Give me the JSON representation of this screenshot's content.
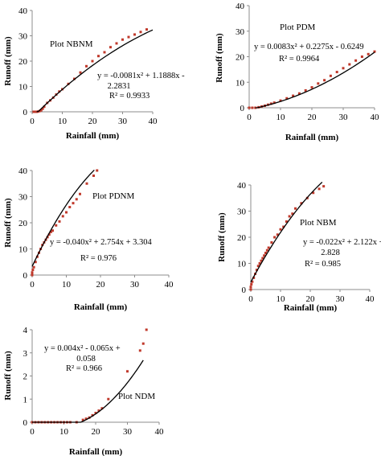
{
  "chart_data": [
    {
      "type": "scatter",
      "title": "Plot NBNM",
      "xlabel": "Rainfall (mm)",
      "ylabel": "Runoff (mm)",
      "xlim": [
        0,
        40
      ],
      "ylim": [
        0,
        40
      ],
      "xticks": [
        "0",
        "10",
        "20",
        "30",
        "40"
      ],
      "yticks": [
        "0",
        "10",
        "20",
        "30",
        "40"
      ],
      "equation_lines": [
        "y = -0.0081x² + 1.1888x -",
        "2.2831"
      ],
      "r2": "R² = 0.9933",
      "fit": {
        "a": -0.0081,
        "b": 1.1888,
        "c": -2.2831,
        "x_start": 1.5,
        "x_end": 40
      },
      "points": [
        [
          0.5,
          0
        ],
        [
          1,
          0
        ],
        [
          1.5,
          0
        ],
        [
          2,
          0.1
        ],
        [
          2.5,
          0.3
        ],
        [
          3,
          0.6
        ],
        [
          3.5,
          1.2
        ],
        [
          4,
          2.0
        ],
        [
          5,
          3.5
        ],
        [
          6,
          4.5
        ],
        [
          7,
          5.6
        ],
        [
          8,
          6.8
        ],
        [
          9,
          8.0
        ],
        [
          10,
          8.9
        ],
        [
          12,
          11
        ],
        [
          14,
          13
        ],
        [
          16,
          15.5
        ],
        [
          18,
          18
        ],
        [
          20,
          20
        ],
        [
          22,
          22
        ],
        [
          24,
          23.5
        ],
        [
          26,
          25.5
        ],
        [
          28,
          27
        ],
        [
          30,
          28.5
        ],
        [
          32,
          29.5
        ],
        [
          34,
          30.5
        ],
        [
          36,
          31.5
        ],
        [
          38,
          32.5
        ]
      ]
    },
    {
      "type": "scatter",
      "title": "Plot PDM",
      "xlabel": "Rainfall (mm)",
      "ylabel": "Runoff (mm)",
      "xlim": [
        0,
        40
      ],
      "ylim": [
        0,
        40
      ],
      "xticks": [
        "0",
        "10",
        "20",
        "30",
        "40"
      ],
      "yticks": [
        "0",
        "10",
        "20",
        "30",
        "40"
      ],
      "equation_lines": [
        "y = 0.0083x² + 0.2275x - 0.6249"
      ],
      "r2": "R² = 0.9964",
      "fit": {
        "a": 0.0083,
        "b": 0.2275,
        "c": -0.6249,
        "x_start": 2,
        "x_end": 40
      },
      "points": [
        [
          0,
          0
        ],
        [
          1,
          0
        ],
        [
          2,
          0
        ],
        [
          3,
          0.2
        ],
        [
          4,
          0.5
        ],
        [
          5,
          0.8
        ],
        [
          6,
          1.2
        ],
        [
          7,
          1.6
        ],
        [
          8,
          2
        ],
        [
          10,
          2.8
        ],
        [
          12,
          3.7
        ],
        [
          14,
          4.7
        ],
        [
          16,
          5.6
        ],
        [
          18,
          6.8
        ],
        [
          20,
          8
        ],
        [
          22,
          9.5
        ],
        [
          24,
          10.8
        ],
        [
          26,
          12.5
        ],
        [
          28,
          14
        ],
        [
          30,
          15.5
        ],
        [
          32,
          17
        ],
        [
          34,
          18.5
        ],
        [
          36,
          20
        ],
        [
          38,
          21
        ],
        [
          40,
          22
        ]
      ]
    },
    {
      "type": "scatter",
      "title": "Plot PDNM",
      "xlabel": "Rainfall (mm)",
      "ylabel": "Runoff (mm)",
      "xlim": [
        0,
        40
      ],
      "ylim": [
        0,
        40
      ],
      "xticks": [
        "0",
        "10",
        "20",
        "30",
        "40"
      ],
      "yticks": [
        "0",
        "10",
        "20",
        "30",
        "40"
      ],
      "equation_lines": [
        "y = -0.040x² + 2.754x + 3.304"
      ],
      "r2": "R² = 0.976",
      "fit": {
        "a": -0.04,
        "b": 2.754,
        "c": 3.304,
        "x_start": 0,
        "x_end": 18.2
      },
      "points": [
        [
          0,
          0
        ],
        [
          0,
          0.5
        ],
        [
          0,
          1
        ],
        [
          0.2,
          2
        ],
        [
          0.5,
          3
        ],
        [
          1,
          5
        ],
        [
          1.5,
          7
        ],
        [
          2,
          8.5
        ],
        [
          2.5,
          10
        ],
        [
          3,
          11.5
        ],
        [
          3.5,
          12.5
        ],
        [
          4,
          13.5
        ],
        [
          4.5,
          14.5
        ],
        [
          5,
          15.5
        ],
        [
          5.5,
          16.5
        ],
        [
          6,
          17
        ],
        [
          7,
          19
        ],
        [
          8,
          20.5
        ],
        [
          9,
          22.5
        ],
        [
          10,
          24
        ],
        [
          11,
          26
        ],
        [
          12,
          27.5
        ],
        [
          13,
          29
        ],
        [
          14,
          31
        ],
        [
          16,
          35
        ],
        [
          18,
          38
        ],
        [
          19,
          40
        ]
      ]
    },
    {
      "type": "scatter",
      "title": "Plot NBM",
      "xlabel": "Rainfall (mm)",
      "ylabel": "Runoff (mm)",
      "xlim": [
        0,
        40
      ],
      "ylim": [
        0,
        40
      ],
      "xticks": [
        "0",
        "10",
        "20",
        "30",
        "40"
      ],
      "yticks": [
        "0",
        "10",
        "20",
        "30",
        "40"
      ],
      "equation_lines": [
        "y = -0.022x² + 2.122x +",
        "2.828"
      ],
      "r2": "R² = 0.985",
      "fit": {
        "a": -0.022,
        "b": 2.122,
        "c": 2.828,
        "x_start": 0,
        "x_end": 24
      },
      "points": [
        [
          0,
          0
        ],
        [
          0,
          1
        ],
        [
          0.2,
          2
        ],
        [
          0.5,
          3
        ],
        [
          1,
          4.5
        ],
        [
          1.5,
          6
        ],
        [
          2,
          7.5
        ],
        [
          2.5,
          9
        ],
        [
          3,
          10
        ],
        [
          3.5,
          11
        ],
        [
          4,
          12
        ],
        [
          4.5,
          13
        ],
        [
          5,
          14
        ],
        [
          5.5,
          15
        ],
        [
          6,
          16
        ],
        [
          7,
          18
        ],
        [
          8,
          20
        ],
        [
          9,
          21
        ],
        [
          10,
          23
        ],
        [
          11,
          24
        ],
        [
          12,
          26
        ],
        [
          13,
          28
        ],
        [
          14,
          29
        ],
        [
          15,
          31
        ],
        [
          17,
          33
        ],
        [
          19,
          35
        ],
        [
          21,
          37
        ],
        [
          23,
          38.5
        ],
        [
          24.5,
          39.5
        ]
      ]
    },
    {
      "type": "scatter",
      "title": "Plot NDM",
      "xlabel": "Rainfall (mm)",
      "ylabel": "Runoff (mm)",
      "xlim": [
        0,
        40
      ],
      "ylim": [
        0,
        4
      ],
      "xticks": [
        "0",
        "10",
        "20",
        "30",
        "40"
      ],
      "yticks": [
        "0",
        "1",
        "2",
        "3",
        "4"
      ],
      "equation_lines": [
        "y = 0.004x² - 0.065x +",
        "0.058"
      ],
      "r2": "R² = 0.966",
      "fit": {
        "a": 0.004,
        "b": -0.065,
        "c": 0.058,
        "x_start": 15.3,
        "x_end": 35
      },
      "points": [
        [
          0,
          0
        ],
        [
          1,
          0
        ],
        [
          2,
          0
        ],
        [
          3,
          0
        ],
        [
          4,
          0
        ],
        [
          5,
          0
        ],
        [
          6,
          0
        ],
        [
          7,
          0
        ],
        [
          8,
          0
        ],
        [
          9,
          0
        ],
        [
          10,
          0
        ],
        [
          11,
          0
        ],
        [
          12,
          0
        ],
        [
          14,
          0
        ],
        [
          16,
          0.1
        ],
        [
          17,
          0.15
        ],
        [
          18,
          0.2
        ],
        [
          19,
          0.3
        ],
        [
          20,
          0.4
        ],
        [
          21,
          0.5
        ],
        [
          22,
          0.6
        ],
        [
          24,
          1.0
        ],
        [
          30,
          2.2
        ],
        [
          34,
          3.1
        ],
        [
          35,
          3.4
        ],
        [
          36,
          4.0
        ]
      ]
    }
  ]
}
